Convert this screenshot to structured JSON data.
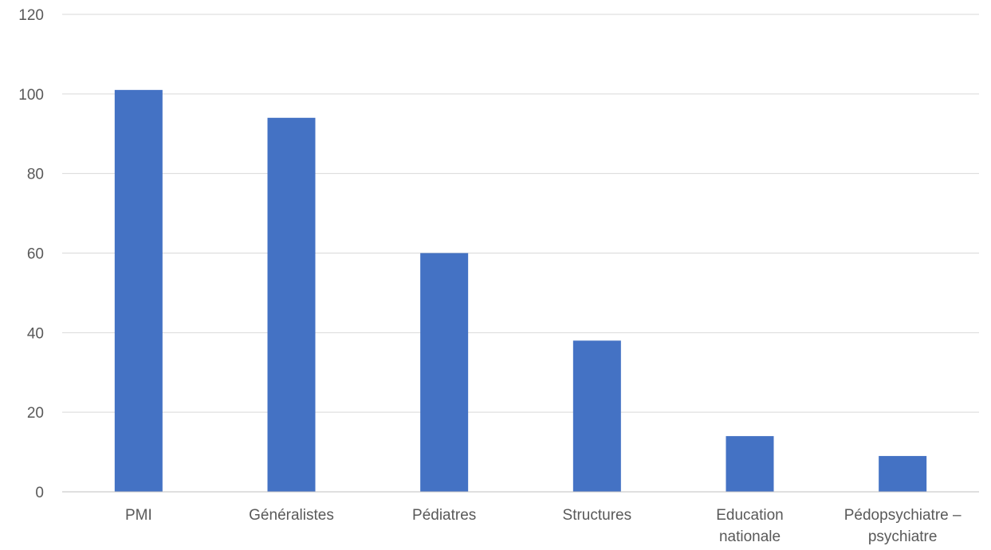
{
  "chart_data": {
    "type": "bar",
    "categories": [
      [
        "PMI"
      ],
      [
        "Généralistes"
      ],
      [
        "Pédiatres"
      ],
      [
        "Structures"
      ],
      [
        "Education",
        "nationale"
      ],
      [
        "Pédopsychiatre –",
        "psychiatre"
      ]
    ],
    "values": [
      101,
      94,
      60,
      38,
      14,
      9
    ],
    "title": "",
    "xlabel": "",
    "ylabel": "",
    "ylim": [
      0,
      120
    ],
    "yticks": [
      0,
      20,
      40,
      60,
      80,
      100,
      120
    ],
    "grid": true,
    "legend": "none",
    "bar_color": "#4472c4"
  }
}
